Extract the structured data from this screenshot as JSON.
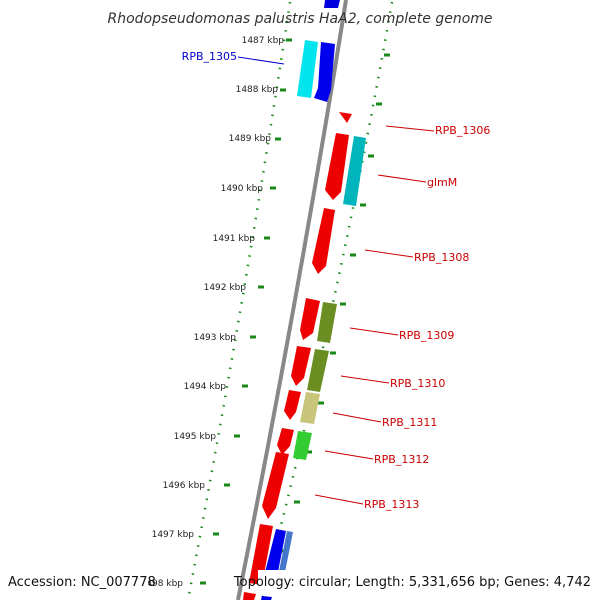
{
  "title": "Rhodopseudomonas palustris HaA2, complete genome",
  "accession": "Accession: NC_007778",
  "topology": "Topology: circular; Length: 5,331,656 bp; Genes: 4,742",
  "colors": {
    "backbone": "#888888",
    "tick_dots": "#1a8a1a",
    "label_red": "#cc0000",
    "label_blue": "#0000cc"
  },
  "kbp_labels": [
    "1487 kbp",
    "1488 kbp",
    "1489 kbp",
    "1490 kbp",
    "1491 kbp",
    "1492 kbp",
    "1493 kbp",
    "1494 kbp",
    "1495 kbp",
    "1496 kbp",
    "1497 kbp",
    "1498 kbp"
  ],
  "gene_labels": [
    {
      "text": "RPB_1305",
      "color": "#0000cc"
    },
    {
      "text": "RPB_1306",
      "color": "#cc0000"
    },
    {
      "text": "glmM",
      "color": "#cc0000"
    },
    {
      "text": "RPB_1308",
      "color": "#cc0000"
    },
    {
      "text": "RPB_1309",
      "color": "#cc0000"
    },
    {
      "text": "RPB_1310",
      "color": "#cc0000"
    },
    {
      "text": "RPB_1311",
      "color": "#cc0000"
    },
    {
      "text": "RPB_1312",
      "color": "#cc0000"
    },
    {
      "text": "RPB_1313",
      "color": "#cc0000"
    }
  ]
}
